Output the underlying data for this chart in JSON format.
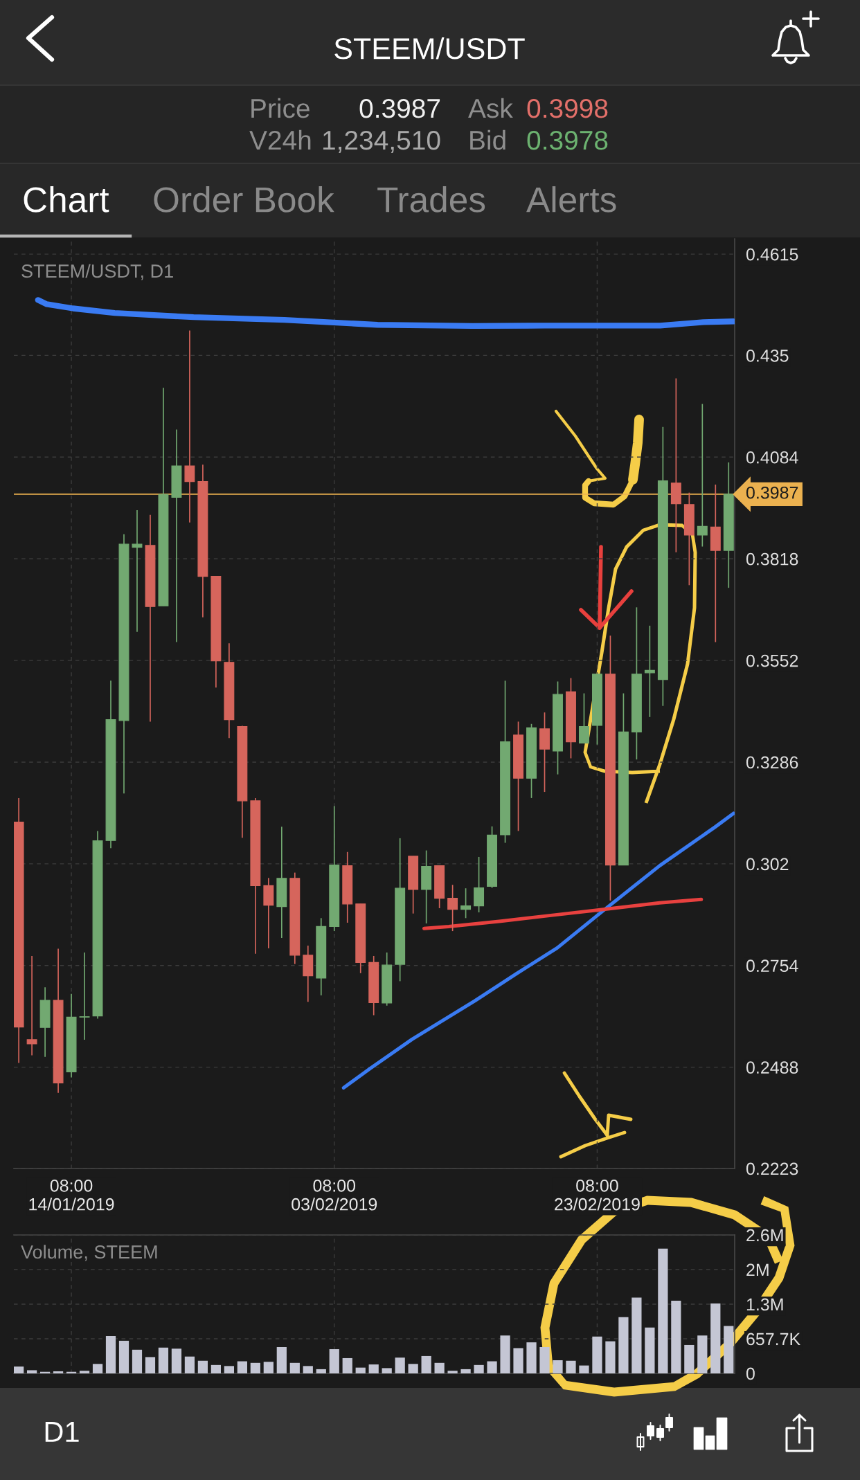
{
  "chart_data": [
    {
      "type": "other",
      "title": "STEEM/USDT",
      "annotations": [
        "Price",
        "0.3987",
        "Ask",
        "0.3998",
        "V24h",
        "1,234,510",
        "Bid",
        "0.3978",
        "Chart",
        "Order Book",
        "Trades",
        "Alerts",
        "D1"
      ]
    },
    {
      "type": "candlestick",
      "title": "STEEM/USDT, D1",
      "x": [
        "2019-01-10T08:00",
        "2019-01-11T08:00",
        "2019-01-12T08:00",
        "2019-01-13T08:00",
        "2019-01-14T08:00",
        "2019-01-15T08:00",
        "2019-01-16T08:00",
        "2019-01-17T08:00",
        "2019-01-18T08:00",
        "2019-01-19T08:00",
        "2019-01-20T08:00",
        "2019-01-21T08:00",
        "2019-01-22T08:00",
        "2019-01-23T08:00",
        "2019-01-24T08:00",
        "2019-01-25T08:00",
        "2019-01-26T08:00",
        "2019-01-27T08:00",
        "2019-01-28T08:00",
        "2019-01-29T08:00",
        "2019-01-30T08:00",
        "2019-01-31T08:00",
        "2019-02-01T08:00",
        "2019-02-02T08:00",
        "2019-02-03T08:00",
        "2019-02-04T08:00",
        "2019-02-05T08:00",
        "2019-02-06T08:00",
        "2019-02-07T08:00",
        "2019-02-08T08:00",
        "2019-02-09T08:00",
        "2019-02-10T08:00",
        "2019-02-11T08:00",
        "2019-02-12T08:00",
        "2019-02-13T08:00",
        "2019-02-14T08:00",
        "2019-02-15T08:00",
        "2019-02-16T08:00",
        "2019-02-17T08:00",
        "2019-02-18T08:00",
        "2019-02-19T08:00",
        "2019-02-20T08:00",
        "2019-02-21T08:00",
        "2019-02-22T08:00",
        "2019-02-23T08:00",
        "2019-02-24T08:00",
        "2019-02-25T08:00",
        "2019-02-26T08:00",
        "2019-02-27T08:00",
        "2019-02-28T08:00",
        "2019-03-01T08:00",
        "2019-03-02T08:00",
        "2019-03-03T08:00",
        "2019-03-04T08:00",
        "2019-03-05T08:00"
      ],
      "ohlc": [
        [
          0.3129,
          0.3192,
          0.2499,
          0.2593
        ],
        [
          0.256,
          0.2779,
          0.2519,
          0.2549
        ],
        [
          0.2592,
          0.2697,
          0.2515,
          0.2663
        ],
        [
          0.2663,
          0.2798,
          0.2421,
          0.2447
        ],
        [
          0.2476,
          0.268,
          0.2461,
          0.2619
        ],
        [
          0.2619,
          0.2788,
          0.256,
          0.262
        ],
        [
          0.2622,
          0.3106,
          0.2615,
          0.308
        ],
        [
          0.3081,
          0.3499,
          0.3061,
          0.3397
        ],
        [
          0.3395,
          0.3882,
          0.3204,
          0.3856
        ],
        [
          0.3848,
          0.3945,
          0.3627,
          0.3856
        ],
        [
          0.3853,
          0.3933,
          0.3392,
          0.3693
        ],
        [
          0.3695,
          0.4265,
          0.3695,
          0.3986
        ],
        [
          0.3979,
          0.4156,
          0.36,
          0.4061
        ],
        [
          0.4061,
          0.4415,
          0.3913,
          0.402
        ],
        [
          0.402,
          0.4064,
          0.3665,
          0.3772
        ],
        [
          0.3772,
          0.3772,
          0.3481,
          0.3551
        ],
        [
          0.3547,
          0.3597,
          0.3349,
          0.3397
        ],
        [
          0.3379,
          0.3381,
          0.3088,
          0.3185
        ],
        [
          0.3185,
          0.3192,
          0.2785,
          0.2963
        ],
        [
          0.2963,
          0.2983,
          0.2799,
          0.2912
        ],
        [
          0.2908,
          0.3117,
          0.2826,
          0.2982
        ],
        [
          0.2982,
          0.2997,
          0.2758,
          0.2781
        ],
        [
          0.2781,
          0.2806,
          0.2659,
          0.2727
        ],
        [
          0.2721,
          0.2878,
          0.2676,
          0.2856
        ],
        [
          0.2856,
          0.3171,
          0.2844,
          0.3017
        ],
        [
          0.3015,
          0.3051,
          0.2866,
          0.2915
        ],
        [
          0.2915,
          0.2915,
          0.2734,
          0.2762
        ],
        [
          0.2762,
          0.2779,
          0.2624,
          0.2657
        ],
        [
          0.2656,
          0.2788,
          0.2649,
          0.2755
        ],
        [
          0.2757,
          0.3087,
          0.2713,
          0.2956
        ],
        [
          0.304,
          0.304,
          0.289,
          0.2953
        ],
        [
          0.2953,
          0.3055,
          0.2864,
          0.3013
        ],
        [
          0.3015,
          0.3015,
          0.2904,
          0.293
        ],
        [
          0.293,
          0.2965,
          0.2844,
          0.2901
        ],
        [
          0.2901,
          0.2956,
          0.2878,
          0.291
        ],
        [
          0.291,
          0.3038,
          0.2893,
          0.2957
        ],
        [
          0.2961,
          0.3118,
          0.2957,
          0.3095
        ],
        [
          0.3096,
          0.3499,
          0.3075,
          0.3339
        ],
        [
          0.3357,
          0.3392,
          0.3106,
          0.3244
        ],
        [
          0.3244,
          0.3386,
          0.3192,
          0.3376
        ],
        [
          0.3373,
          0.3416,
          0.3208,
          0.332
        ],
        [
          0.3315,
          0.3497,
          0.3254,
          0.3463
        ],
        [
          0.347,
          0.3506,
          0.3296,
          0.3339
        ],
        [
          0.3336,
          0.3466,
          0.3336,
          0.3379
        ],
        [
          0.3382,
          0.3516,
          0.3332,
          0.3516
        ],
        [
          0.3516,
          0.3617,
          0.2924,
          0.3017
        ],
        [
          0.3017,
          0.3466,
          0.3017,
          0.3365
        ],
        [
          0.3365,
          0.3691,
          0.3293,
          0.3516
        ],
        [
          0.352,
          0.3643,
          0.3404,
          0.3526
        ],
        [
          0.3502,
          0.4163,
          0.3433,
          0.4022
        ],
        [
          0.4016,
          0.429,
          0.3835,
          0.3962
        ],
        [
          0.396,
          0.3991,
          0.3749,
          0.388
        ],
        [
          0.388,
          0.4223,
          0.385,
          0.3903
        ],
        [
          0.3901,
          0.4012,
          0.36,
          0.384
        ],
        [
          0.384,
          0.407,
          0.3742,
          0.3987
        ]
      ],
      "colors": [
        "#d6655c",
        "#d6655c",
        "#72a971",
        "#d6655c",
        "#72a971",
        "#72a971",
        "#72a971",
        "#72a971",
        "#72a971",
        "#72a971",
        "#d6655c",
        "#72a971",
        "#72a971",
        "#d6655c",
        "#d6655c",
        "#d6655c",
        "#d6655c",
        "#d6655c",
        "#d6655c",
        "#d6655c",
        "#72a971",
        "#d6655c",
        "#d6655c",
        "#72a971",
        "#72a971",
        "#d6655c",
        "#d6655c",
        "#d6655c",
        "#72a971",
        "#72a971",
        "#d6655c",
        "#72a971",
        "#d6655c",
        "#d6655c",
        "#72a971",
        "#72a971",
        "#72a971",
        "#72a971",
        "#d6655c",
        "#72a971",
        "#d6655c",
        "#72a971",
        "#d6655c",
        "#72a971",
        "#72a971",
        "#d6655c",
        "#72a971",
        "#72a971",
        "#72a971",
        "#72a971",
        "#d6655c",
        "#d6655c",
        "#72a971",
        "#d6655c",
        "#72a971"
      ],
      "series": [
        {
          "type": "line",
          "color": "#3a7bf3",
          "x": [
            "2019-01-11T19:00",
            "2019-01-12T11:00",
            "2019-01-14T11:00",
            "2019-01-17T15:00",
            "2019-01-23T15:00",
            "2019-01-30T13:00",
            "2019-02-06T15:00",
            "2019-02-13T20:00",
            "2019-02-19T08:00",
            "2019-02-28T03:00",
            "2019-03-03T10:00",
            "2019-03-05T17:00"
          ],
          "values": [
            0.4495,
            0.4484,
            0.4473,
            0.4461,
            0.445,
            0.4443,
            0.443,
            0.4427,
            0.4428,
            0.4428,
            0.4437,
            0.4439
          ]
        },
        {
          "type": "line",
          "color": "#3a7bf3",
          "x": [
            "2019-02-04T01:00",
            "2019-02-06T02:00",
            "2019-02-09T06:00",
            "2019-02-14T01:00",
            "2019-02-17T05:00",
            "2019-02-20T07:00",
            "2019-02-23T22:00",
            "2019-02-28T02:00",
            "2019-03-04T07:00",
            "2019-03-05T17:00"
          ],
          "values": [
            0.2434,
            0.2485,
            0.2561,
            0.2662,
            0.2733,
            0.28,
            0.2901,
            0.3015,
            0.3116,
            0.3152
          ]
        },
        {
          "type": "line",
          "color": "#e8413f",
          "x": [
            "2019-02-10T04:00",
            "2019-02-12T01:00",
            "2019-02-16T00:00",
            "2019-02-20T01:00",
            "2019-02-23T22:00",
            "2019-02-28T02:00",
            "2019-03-03T06:00"
          ],
          "values": [
            0.2851,
            0.2856,
            0.287,
            0.2886,
            0.2901,
            0.2918,
            0.2927
          ]
        }
      ],
      "xlim": [
        "2019-01-09T23:00",
        "2019-03-05T19:00"
      ],
      "ylim": [
        0.2223,
        0.4655
      ],
      "xticks": [
        {
          "value": "2019-01-14T08:00",
          "label": "08:00\n14/01/2019"
        },
        {
          "value": "2019-02-03T08:00",
          "label": "08:00\n03/02/2019"
        },
        {
          "value": "2019-02-23T08:00",
          "label": "08:00\n23/02/2019"
        }
      ],
      "yticks": [
        0.2223,
        0.2488,
        0.2754,
        0.302,
        0.3286,
        0.3552,
        0.3818,
        0.4084,
        0.435,
        0.4615
      ],
      "ref_lines": [
        {
          "axis": "y",
          "value": 0.3987,
          "label": "0.3987",
          "color": "#ebb14f"
        }
      ],
      "grid": true
    },
    {
      "type": "bar",
      "title": "Volume, STEEM",
      "x": [
        "2019-01-10T08:00",
        "2019-01-11T08:00",
        "2019-01-12T08:00",
        "2019-01-13T08:00",
        "2019-01-14T08:00",
        "2019-01-15T08:00",
        "2019-01-16T08:00",
        "2019-01-17T08:00",
        "2019-01-18T08:00",
        "2019-01-19T08:00",
        "2019-01-20T08:00",
        "2019-01-21T08:00",
        "2019-01-22T08:00",
        "2019-01-23T08:00",
        "2019-01-24T08:00",
        "2019-01-25T08:00",
        "2019-01-26T08:00",
        "2019-01-27T08:00",
        "2019-01-28T08:00",
        "2019-01-29T08:00",
        "2019-01-30T08:00",
        "2019-01-31T08:00",
        "2019-02-01T08:00",
        "2019-02-02T08:00",
        "2019-02-03T08:00",
        "2019-02-04T08:00",
        "2019-02-05T08:00",
        "2019-02-06T08:00",
        "2019-02-07T08:00",
        "2019-02-08T08:00",
        "2019-02-09T08:00",
        "2019-02-10T08:00",
        "2019-02-11T08:00",
        "2019-02-12T08:00",
        "2019-02-13T08:00",
        "2019-02-14T08:00",
        "2019-02-15T08:00",
        "2019-02-16T08:00",
        "2019-02-17T08:00",
        "2019-02-18T08:00",
        "2019-02-19T08:00",
        "2019-02-20T08:00",
        "2019-02-21T08:00",
        "2019-02-22T08:00",
        "2019-02-23T08:00",
        "2019-02-24T08:00",
        "2019-02-25T08:00",
        "2019-02-26T08:00",
        "2019-02-27T08:00",
        "2019-02-28T08:00",
        "2019-03-01T08:00",
        "2019-03-02T08:00",
        "2019-03-03T08:00",
        "2019-03-04T08:00",
        "2019-03-05T08:00"
      ],
      "values": [
        130000,
        60000,
        30000,
        40000,
        30000,
        50000,
        180000,
        710000,
        620000,
        450000,
        310000,
        490000,
        470000,
        320000,
        240000,
        160000,
        140000,
        230000,
        200000,
        220000,
        500000,
        200000,
        140000,
        80000,
        460000,
        290000,
        110000,
        170000,
        100000,
        300000,
        180000,
        330000,
        200000,
        50000,
        80000,
        160000,
        230000,
        720000,
        480000,
        590000,
        500000,
        250000,
        240000,
        150000,
        700000,
        610000,
        1070000,
        1440000,
        870000,
        2370000,
        1380000,
        540000,
        720000,
        1330000,
        900000
      ],
      "color": "#c4c6d4",
      "xlim": [
        "2019-01-09T23:00",
        "2019-03-05T19:00"
      ],
      "ylim": [
        0,
        2630800
      ],
      "xticks": [
        {
          "value": "2019-01-14T08:00",
          "label": null
        },
        {
          "value": "2019-02-03T08:00",
          "label": null
        },
        {
          "value": "2019-02-23T08:00",
          "label": null
        }
      ],
      "yticks": [
        0,
        {
          "value": 657700,
          "label": "657.7K"
        },
        {
          "value": 1315400,
          "label": "1.3M"
        },
        {
          "value": 1973100,
          "label": "2M"
        },
        {
          "value": 2630800,
          "label": "2.6M"
        }
      ],
      "tick_labels": "y",
      "grid": true
    }
  ]
}
